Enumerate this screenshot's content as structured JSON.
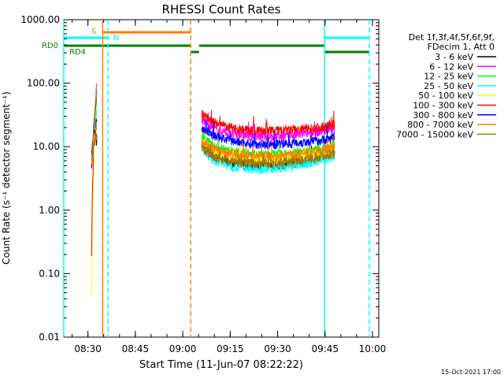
{
  "chart_data": {
    "type": "line",
    "title": "RHESSI Count Rates",
    "xlabel": "Start Time (11-Jun-07 08:22:22)",
    "ylabel": "Count Rate (s⁻¹ detector segment⁻¹)",
    "yscale": "log",
    "xlim": [
      "08:22:22",
      "10:02:00"
    ],
    "ylim": [
      0.01,
      1000
    ],
    "xticks": [
      "08:30",
      "08:45",
      "09:00",
      "09:15",
      "09:30",
      "09:45",
      "10:00"
    ],
    "yticks": [
      "0.01",
      "0.10",
      "1.00",
      "10.00",
      "100.00",
      "1000.00"
    ],
    "legend_header": [
      "Det 1f,3f,4f,5f,6f,9f,",
      "FDecim 1, Att 0"
    ],
    "legend_position": "right",
    "series": [
      {
        "name": "3 - 6 keV",
        "color": "#000000",
        "burst": [
          [
            "08:31:10",
            6.5
          ],
          [
            "08:31:40",
            9
          ],
          [
            "08:32:20",
            12
          ],
          [
            "08:32:50",
            14
          ]
        ],
        "values": [
          [
            "09:06:00",
            10
          ],
          [
            "09:10:00",
            7
          ],
          [
            "09:15:00",
            5.5
          ],
          [
            "09:20:00",
            5
          ],
          [
            "09:25:00",
            5
          ],
          [
            "09:30:00",
            5.1
          ],
          [
            "09:35:00",
            5.5
          ],
          [
            "09:40:00",
            6
          ],
          [
            "09:45:00",
            7.5
          ],
          [
            "09:48:00",
            8.5
          ]
        ]
      },
      {
        "name": "6 - 12 keV",
        "color": "#ff00ff",
        "burst": [
          [
            "08:31:10",
            8
          ],
          [
            "08:32:00",
            30
          ],
          [
            "08:32:50",
            100
          ]
        ],
        "values": [
          [
            "09:06:00",
            27
          ],
          [
            "09:10:00",
            19
          ],
          [
            "09:15:00",
            16
          ],
          [
            "09:20:00",
            15
          ],
          [
            "09:25:00",
            14.5
          ],
          [
            "09:30:00",
            14.5
          ],
          [
            "09:35:00",
            15
          ],
          [
            "09:40:00",
            16.5
          ],
          [
            "09:45:00",
            18
          ],
          [
            "09:48:00",
            19
          ]
        ]
      },
      {
        "name": "12 - 25 keV",
        "color": "#00ff00",
        "burst": [
          [
            "08:31:10",
            7
          ],
          [
            "08:32:00",
            25
          ],
          [
            "08:32:50",
            80
          ]
        ],
        "values": [
          [
            "09:06:00",
            15
          ],
          [
            "09:10:00",
            10
          ],
          [
            "09:15:00",
            8.5
          ],
          [
            "09:20:00",
            8
          ],
          [
            "09:25:00",
            7.5
          ],
          [
            "09:30:00",
            7.6
          ],
          [
            "09:35:00",
            8
          ],
          [
            "09:40:00",
            8.5
          ],
          [
            "09:45:00",
            9.5
          ],
          [
            "09:48:00",
            10
          ]
        ]
      },
      {
        "name": "25 - 50 keV",
        "color": "#00ffff",
        "burst": [
          [
            "08:31:10",
            6
          ],
          [
            "08:32:00",
            15
          ],
          [
            "08:32:50",
            40
          ]
        ],
        "values": [
          [
            "09:06:00",
            9
          ],
          [
            "09:10:00",
            6
          ],
          [
            "09:15:00",
            5
          ],
          [
            "09:20:00",
            4.6
          ],
          [
            "09:25:00",
            4.5
          ],
          [
            "09:30:00",
            4.6
          ],
          [
            "09:35:00",
            5
          ],
          [
            "09:40:00",
            5.5
          ],
          [
            "09:45:00",
            6.5
          ],
          [
            "09:48:00",
            7
          ]
        ]
      },
      {
        "name": "50 - 100 keV",
        "color": "#ffff00",
        "burst": [
          [
            "08:31:10",
            0.04
          ],
          [
            "08:31:30",
            1
          ],
          [
            "08:32:00",
            12
          ],
          [
            "08:32:50",
            30
          ]
        ],
        "values": [
          [
            "09:06:00",
            11
          ],
          [
            "09:10:00",
            8
          ],
          [
            "09:15:00",
            7
          ],
          [
            "09:20:00",
            6.5
          ],
          [
            "09:25:00",
            6.3
          ],
          [
            "09:30:00",
            6.4
          ],
          [
            "09:35:00",
            6.8
          ],
          [
            "09:40:00",
            7.2
          ],
          [
            "09:45:00",
            8
          ],
          [
            "09:48:00",
            8.5
          ]
        ]
      },
      {
        "name": "100 - 300 keV",
        "color": "#ff0000",
        "burst": [
          [
            "08:31:10",
            0.25
          ],
          [
            "08:31:30",
            3
          ],
          [
            "08:32:00",
            20
          ],
          [
            "08:32:50",
            60
          ]
        ],
        "values": [
          [
            "09:06:00",
            33
          ],
          [
            "09:10:00",
            24
          ],
          [
            "09:15:00",
            20
          ],
          [
            "09:20:00",
            18.5
          ],
          [
            "09:25:00",
            18
          ],
          [
            "09:30:00",
            18
          ],
          [
            "09:35:00",
            18.5
          ],
          [
            "09:40:00",
            19.5
          ],
          [
            "09:45:00",
            21
          ],
          [
            "09:48:00",
            23
          ]
        ]
      },
      {
        "name": "300 - 800 keV",
        "color": "#0000ff",
        "burst": [
          [
            "08:31:10",
            7
          ],
          [
            "08:32:00",
            15
          ],
          [
            "08:32:50",
            25
          ]
        ],
        "values": [
          [
            "09:06:00",
            20
          ],
          [
            "09:10:00",
            15
          ],
          [
            "09:15:00",
            12.5
          ],
          [
            "09:20:00",
            11.5
          ],
          [
            "09:25:00",
            11
          ],
          [
            "09:30:00",
            11
          ],
          [
            "09:35:00",
            11.5
          ],
          [
            "09:40:00",
            12
          ],
          [
            "09:45:00",
            13
          ],
          [
            "09:48:00",
            14
          ]
        ]
      },
      {
        "name": "800 - 7000 keV",
        "color": "#ff8000",
        "burst": [
          [
            "08:31:10",
            6
          ],
          [
            "08:32:00",
            12
          ],
          [
            "08:32:50",
            20
          ]
        ],
        "values": [
          [
            "09:06:00",
            12
          ],
          [
            "09:10:00",
            9
          ],
          [
            "09:15:00",
            7.8
          ],
          [
            "09:20:00",
            7.2
          ],
          [
            "09:25:00",
            7
          ],
          [
            "09:30:00",
            7.1
          ],
          [
            "09:35:00",
            7.5
          ],
          [
            "09:40:00",
            8
          ],
          [
            "09:45:00",
            9
          ],
          [
            "09:48:00",
            9.5
          ]
        ]
      },
      {
        "name": "7000 - 15000 keV",
        "color": "#a07800",
        "burst": [
          [
            "08:31:10",
            6
          ],
          [
            "08:32:00",
            10
          ],
          [
            "08:32:50",
            15
          ]
        ],
        "values": [
          [
            "09:06:00",
            9.5
          ],
          [
            "09:10:00",
            7
          ],
          [
            "09:15:00",
            6
          ],
          [
            "09:20:00",
            5.6
          ],
          [
            "09:25:00",
            5.5
          ],
          [
            "09:30:00",
            5.6
          ],
          [
            "09:35:00",
            6
          ],
          [
            "09:40:00",
            6.5
          ],
          [
            "09:45:00",
            7.3
          ],
          [
            "09:48:00",
            7.8
          ]
        ]
      }
    ],
    "annotations": {
      "vertical_lines": [
        {
          "time": "08:22:22",
          "color": "#00ffff",
          "style": "solid"
        },
        {
          "time": "08:34:40",
          "color": "#ff8000",
          "style": "solid"
        },
        {
          "time": "08:36:20",
          "color": "#00ffff",
          "style": "dashed"
        },
        {
          "time": "09:02:30",
          "color": "#ff8000",
          "style": "dashed"
        },
        {
          "time": "09:44:50",
          "color": "#00ffff",
          "style": "solid"
        },
        {
          "time": "09:59:00",
          "color": "#00ffff",
          "style": "dashed"
        }
      ],
      "flag_bars": [
        {
          "label": "S",
          "color": "#ff8000",
          "level": 1,
          "segments": [
            [
              "08:34:40",
              "09:02:30"
            ]
          ]
        },
        {
          "label": "N",
          "color": "#00ffff",
          "level": 2,
          "segments": [
            [
              "08:22:22",
              "08:36:20"
            ],
            [
              "09:44:50",
              "09:59:00"
            ]
          ]
        },
        {
          "label": "RD0",
          "color": "#008000",
          "level": 3,
          "segments": [
            [
              "08:22:22",
              "09:02:30"
            ],
            [
              "09:05:10",
              "09:44:50"
            ]
          ]
        },
        {
          "label": "RD4",
          "color": "#008000",
          "level": 4,
          "segments": [
            [
              "09:02:30",
              "09:05:10"
            ],
            [
              "09:44:50",
              "09:59:00"
            ]
          ]
        }
      ]
    }
  },
  "footer": {
    "date": "15-Oct-2021 17:00"
  }
}
